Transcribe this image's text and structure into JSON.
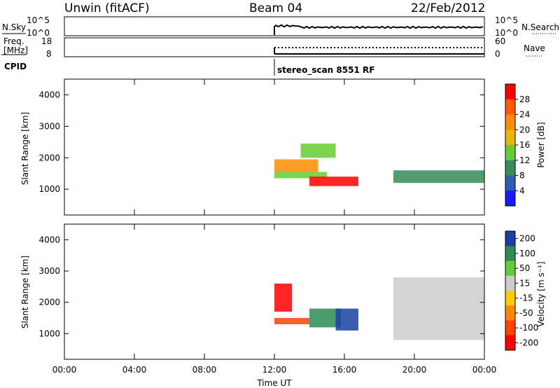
{
  "header": {
    "left_title": "Unwin (fitACF)",
    "center_title": "Beam 04",
    "right_title": "22/Feb/2012"
  },
  "status_rows": {
    "row1_left_label": "N.Sky",
    "row1_left_ticks": [
      "10^5",
      "10^0"
    ],
    "row1_right_label": "N.Search",
    "row1_right_ticks": [
      "10^5",
      "10^0"
    ],
    "row2_left_label_1": "Freq.",
    "row2_left_label_2": "[MHz]",
    "row2_left_ticks": [
      "18",
      "8"
    ],
    "row2_right_label": "Nave",
    "row2_right_ticks": [
      "60",
      "0"
    ],
    "cpid_label": "CPID",
    "cpid_text": "stereo_scan 8551 RF"
  },
  "colors": {
    "power_scale": [
      "#1a1aff",
      "#2a5fb0",
      "#3a8a5a",
      "#66cc33",
      "#e6b800",
      "#ff8c00",
      "#ff5a00",
      "#ff0000"
    ],
    "velocity_scale": [
      "#ff0000",
      "#ff4400",
      "#ff8800",
      "#ffcc00",
      "#cccccc",
      "#66cc33",
      "#2e8b57",
      "#1a3fa0"
    ],
    "ground_scatter": "#bdbdbd"
  },
  "chart_data": [
    {
      "type": "heatmap",
      "title": "Power",
      "xlabel": "Time UT",
      "ylabel": "Slant Range [km]",
      "x_ticks": [
        "00:00",
        "04:00",
        "08:00",
        "12:00",
        "16:00",
        "20:00",
        "00:00"
      ],
      "x_range_hours": [
        0,
        24
      ],
      "y_ticks": [
        "1000",
        "2000",
        "3000",
        "4000"
      ],
      "y_range_km": [
        180,
        4500
      ],
      "colorbar_label": "Power [dB]",
      "colorbar_ticks": [
        "4",
        "8",
        "12",
        "16",
        "20",
        "24",
        "28"
      ],
      "colorbar_range_db": [
        0,
        32
      ],
      "data_start_hour": 12.0,
      "regions": [
        {
          "t0": 12.0,
          "t1": 15.0,
          "r0": 1350,
          "r1": 1550,
          "value_db": 14
        },
        {
          "t0": 12.0,
          "t1": 14.5,
          "r0": 1550,
          "r1": 1950,
          "value_db": 20
        },
        {
          "t0": 14.0,
          "t1": 16.8,
          "r0": 1100,
          "r1": 1400,
          "value_db": 28
        },
        {
          "t0": 13.5,
          "t1": 15.5,
          "r0": 2000,
          "r1": 2450,
          "value_db": 12
        },
        {
          "t0": 18.8,
          "t1": 24.0,
          "r0": 1200,
          "r1": 1600,
          "value_db": 10
        }
      ]
    },
    {
      "type": "heatmap",
      "title": "Velocity",
      "xlabel": "Time UT",
      "ylabel": "Slant Range [km]",
      "x_ticks": [
        "00:00",
        "04:00",
        "08:00",
        "12:00",
        "16:00",
        "20:00",
        "00:00"
      ],
      "x_range_hours": [
        0,
        24
      ],
      "y_ticks": [
        "1000",
        "2000",
        "3000",
        "4000"
      ],
      "y_range_km": [
        180,
        4500
      ],
      "colorbar_label": "Velocity [m s⁻¹]",
      "colorbar_ticks": [
        "200",
        "100",
        "50",
        "15",
        "-15",
        "-50",
        "-100",
        "-200"
      ],
      "colorbar_range_ms": [
        -250,
        250
      ],
      "data_start_hour": 12.0,
      "regions": [
        {
          "t0": 12.0,
          "t1": 13.0,
          "r0": 1700,
          "r1": 2600,
          "value_ms": -200
        },
        {
          "t0": 12.0,
          "t1": 14.0,
          "r0": 1300,
          "r1": 1500,
          "value_ms": -100
        },
        {
          "t0": 14.0,
          "t1": 15.8,
          "r0": 1200,
          "r1": 1800,
          "value_ms": 60
        },
        {
          "t0": 15.5,
          "t1": 16.8,
          "r0": 1100,
          "r1": 1800,
          "value_ms": 200
        },
        {
          "t0": 18.8,
          "t1": 24.0,
          "r0": 800,
          "r1": 2800,
          "value_ms": 0
        }
      ]
    }
  ]
}
